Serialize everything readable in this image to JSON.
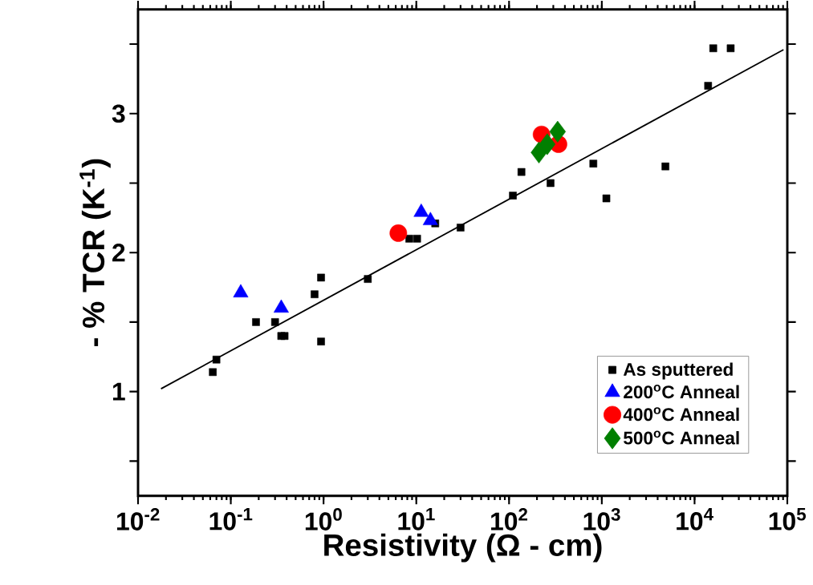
{
  "chart_data": {
    "type": "scatter",
    "xlabel": "Resistivity (Ω - cm)",
    "ylabel": "- % TCR (K$^{-1}$)",
    "log": "x",
    "legend": "bottom right",
    "xlim": [
      0.01,
      100000
    ],
    "ylim": [
      0.25,
      3.75
    ],
    "xticks": [
      {
        "value": 0.01,
        "label": "10$^{-2}$"
      },
      {
        "value": 0.1,
        "label": "10$^{-1}$"
      },
      {
        "value": 1,
        "label": "10$^{0}$"
      },
      {
        "value": 10,
        "label": "10$^{1}$"
      },
      {
        "value": 100,
        "label": "10$^{2}$"
      },
      {
        "value": 1000,
        "label": "10$^{3}$"
      },
      {
        "value": 10000,
        "label": "10$^{4}$"
      },
      {
        "value": 100000,
        "label": "10$^{5}$"
      }
    ],
    "yticks": [
      {
        "value": 0.5,
        "label": null
      },
      1,
      {
        "value": 1.5,
        "label": null
      },
      2,
      {
        "value": 2.5,
        "label": null
      },
      3,
      {
        "value": 3.5,
        "label": null
      }
    ],
    "series": [
      {
        "name": "As sputtered",
        "marker": "square",
        "color": "#000000",
        "x": [
          0.064,
          0.07,
          0.187,
          0.3,
          0.35,
          0.38,
          0.8,
          0.94,
          0.94,
          3.0,
          8.4,
          10.2,
          16,
          30,
          110,
          136,
          280,
          810,
          1120,
          4850,
          14000,
          15900,
          24500
        ],
        "values": [
          1.14,
          1.23,
          1.5,
          1.5,
          1.4,
          1.4,
          1.7,
          1.82,
          1.36,
          1.81,
          2.1,
          2.1,
          2.21,
          2.18,
          2.41,
          2.58,
          2.5,
          2.64,
          2.39,
          2.62,
          3.2,
          3.47,
          3.47
        ]
      },
      {
        "name": "200$^{o}$C Anneal",
        "marker": "triangle",
        "color": "#0000ff",
        "x": [
          0.128,
          0.35,
          11.3,
          14.2
        ],
        "values": [
          1.71,
          1.6,
          2.29,
          2.23
        ]
      },
      {
        "name": "400$^{o}$C Anneal",
        "marker": "circle",
        "color": "#ff0000",
        "x": [
          6.4,
          224,
          341
        ],
        "values": [
          2.14,
          2.85,
          2.78
        ]
      },
      {
        "name": "500$^{o}$C Anneal",
        "marker": "diamond",
        "color": "#007f00",
        "x": [
          210,
          258,
          334
        ],
        "values": [
          2.72,
          2.78,
          2.87
        ]
      },
      {
        "type": "line",
        "marker": "none",
        "color": "#000000",
        "x": [
          0.0177,
          91000
        ],
        "values": [
          1.02,
          3.46
        ]
      }
    ]
  }
}
